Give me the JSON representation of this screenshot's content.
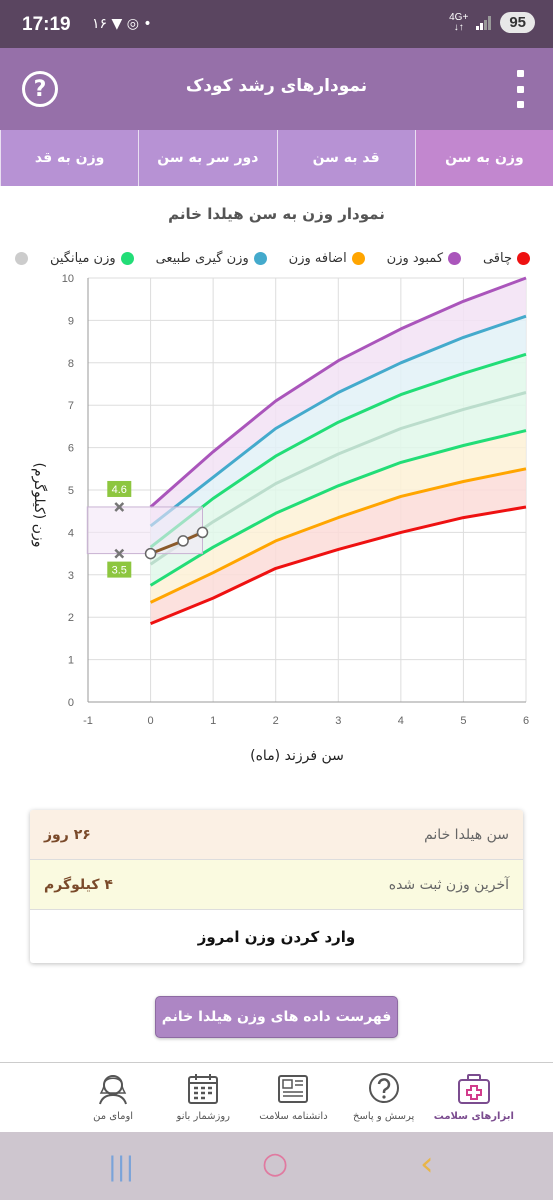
{
  "status_bar": {
    "time": "17:19",
    "notif_icons": "۱۶ ▼ ◎ •",
    "net_top": "4G+",
    "net_bottom": "↓↑",
    "battery": "95"
  },
  "header": {
    "title": "نمودارهای رشد کودک",
    "help": "?"
  },
  "tabs": [
    {
      "label": "وزن به سن",
      "active": true
    },
    {
      "label": "قد به سن",
      "active": false
    },
    {
      "label": "دور سر به سن",
      "active": false
    },
    {
      "label": "وزن به قد",
      "active": false
    }
  ],
  "chart_title": "نمودار وزن به سن هیلدا خانم",
  "legend": [
    {
      "label": "چاقی",
      "color": "#ee1111"
    },
    {
      "label": "کمبود وزن",
      "color": "#aa55bb"
    },
    {
      "label": "اضافه وزن",
      "color": "#ffa500"
    },
    {
      "label": "وزن گیری طبیعی",
      "color": "#44aacc"
    },
    {
      "label": "وزن میانگین",
      "color": "#22dd77"
    },
    {
      "label": "",
      "color": "#cccccc"
    }
  ],
  "chart_data": {
    "type": "line",
    "xlabel": "سن فرزند (ماه)",
    "ylabel": "وزن (کیلوگرم)",
    "xlim": [
      -1,
      6
    ],
    "ylim": [
      0,
      10
    ],
    "x_ticks": [
      "-1",
      "0",
      "1",
      "2",
      "3",
      "4",
      "5",
      "6"
    ],
    "y_ticks": [
      "0",
      "1",
      "2",
      "3",
      "4",
      "5",
      "6",
      "7",
      "8",
      "9",
      "10"
    ],
    "grid": true,
    "x": [
      0,
      1,
      2,
      3,
      4,
      5,
      6
    ],
    "series": [
      {
        "key": "obese",
        "color": "#aa55bb",
        "values": [
          4.6,
          5.9,
          7.1,
          8.05,
          8.8,
          9.45,
          10.0
        ]
      },
      {
        "key": "overweight",
        "color": "#44aacc",
        "values": [
          4.15,
          5.3,
          6.45,
          7.3,
          8.0,
          8.6,
          9.1
        ]
      },
      {
        "key": "normal_upper",
        "color": "#22dd77",
        "values": [
          3.65,
          4.8,
          5.8,
          6.6,
          7.25,
          7.75,
          8.2
        ]
      },
      {
        "key": "average",
        "color": "#bbddcc",
        "values": [
          3.25,
          4.25,
          5.15,
          5.85,
          6.45,
          6.9,
          7.3
        ]
      },
      {
        "key": "normal_lower",
        "color": "#22dd77",
        "values": [
          2.75,
          3.65,
          4.45,
          5.1,
          5.65,
          6.05,
          6.4
        ]
      },
      {
        "key": "underweight",
        "color": "#ffa500",
        "values": [
          2.35,
          3.05,
          3.8,
          4.35,
          4.85,
          5.2,
          5.5
        ]
      },
      {
        "key": "severe_underweight",
        "color": "#ee1111",
        "values": [
          1.85,
          2.45,
          3.15,
          3.6,
          4.0,
          4.35,
          4.6
        ]
      }
    ],
    "child": {
      "color": "#8b5a2b",
      "x": [
        0,
        0.52,
        0.83
      ],
      "values": [
        3.5,
        3.8,
        4.0
      ]
    },
    "range_markers": {
      "x": -0.5,
      "high": 4.6,
      "low": 3.5,
      "high_label": "4.6",
      "low_label": "3.5"
    }
  },
  "info": {
    "age_label": "سن هیلدا خانم",
    "age_value": "۲۶ روز",
    "weight_label": "آخرین وزن ثبت شده",
    "weight_value": "۴ کیلوگرم",
    "enter_today": "وارد کردن وزن امروز"
  },
  "list_button": "فهرست داده های وزن هیلدا خانم",
  "nav": [
    {
      "label": "ابزارهای سلامت",
      "icon": "first-aid-kit-icon",
      "active": true
    },
    {
      "label": "پرسش و پاسخ",
      "icon": "question-bubble-icon",
      "active": false
    },
    {
      "label": "دانشنامه سلامت",
      "icon": "newspaper-icon",
      "active": false
    },
    {
      "label": "روزشمار بانو",
      "icon": "calendar-icon",
      "active": false
    },
    {
      "label": "اومای من",
      "icon": "woman-avatar-icon",
      "active": false
    }
  ],
  "system_nav": {
    "recents": "|||",
    "home": "○",
    "back": "‹"
  }
}
